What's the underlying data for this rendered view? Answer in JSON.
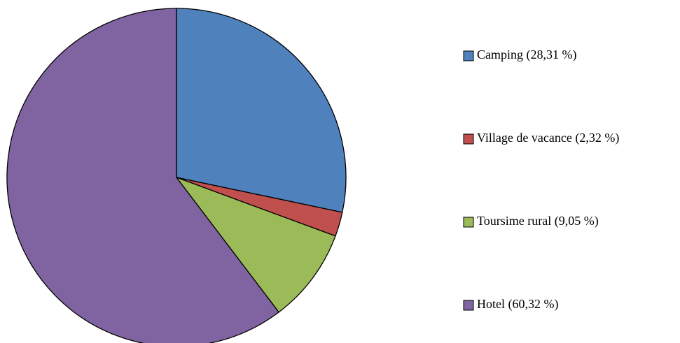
{
  "chart_data": {
    "type": "pie",
    "categories": [
      "Camping (28,31 %)",
      "Village de vacance (2,32 %)",
      "Toursime rural (9,05 %)",
      "Hotel (60,32 %)"
    ],
    "values": [
      28.31,
      2.32,
      9.05,
      60.32
    ],
    "colors": [
      "#4f81bd",
      "#c0504d",
      "#9bbb59",
      "#8064a2"
    ],
    "legend": "right"
  }
}
